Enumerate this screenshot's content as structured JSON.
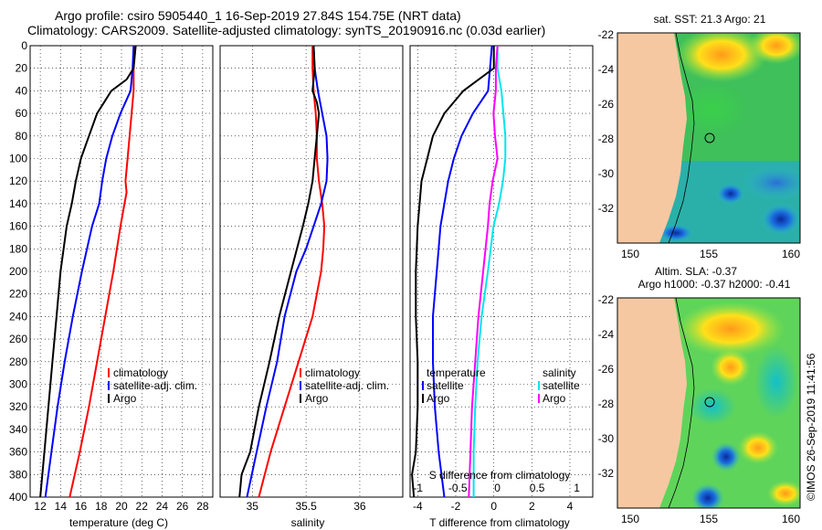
{
  "header": {
    "line1": "Argo profile: csiro 5905440_1 16-Sep-2019 27.84S 154.75E (NRT data)",
    "line2": "Climatology: CARS2009. Satellite-adjusted climatology: synTS_20190916.nc (0.03d earlier)"
  },
  "chart_data": [
    {
      "type": "line",
      "panel": "temperature",
      "xlabel": "temperature (deg C)",
      "ylabel": "",
      "xlim": [
        11,
        29
      ],
      "ylim": [
        400,
        0
      ],
      "xticks": [
        12,
        14,
        16,
        18,
        20,
        22,
        24,
        26,
        28
      ],
      "yticks": [
        0,
        20,
        40,
        60,
        80,
        100,
        120,
        140,
        160,
        180,
        200,
        220,
        240,
        260,
        280,
        300,
        320,
        340,
        360,
        380,
        400
      ],
      "legend": [
        "climatology",
        "satellite-adj. clim.",
        "Argo"
      ],
      "series": [
        {
          "name": "climatology",
          "color": "#ff0000",
          "depth": [
            0,
            20,
            40,
            60,
            80,
            100,
            120,
            130,
            140,
            160,
            200,
            240,
            280,
            320,
            360,
            400
          ],
          "values": [
            21.3,
            21.2,
            21.2,
            21.0,
            20.8,
            20.6,
            20.4,
            20.5,
            20.3,
            19.9,
            19.2,
            18.4,
            17.6,
            16.8,
            15.9,
            14.9
          ]
        },
        {
          "name": "satellite-adj. clim.",
          "color": "#0000ff",
          "depth": [
            0,
            20,
            40,
            50,
            60,
            80,
            100,
            120,
            140,
            160,
            200,
            240,
            280,
            320,
            360,
            400
          ],
          "values": [
            21.2,
            21.1,
            20.9,
            20.4,
            19.9,
            19.1,
            18.5,
            18.1,
            17.8,
            17.1,
            16.1,
            15.2,
            14.4,
            13.7,
            13.1,
            12.5
          ]
        },
        {
          "name": "Argo",
          "color": "#000000",
          "depth": [
            0,
            20,
            30,
            40,
            50,
            60,
            80,
            100,
            120,
            140,
            160,
            200,
            240,
            280,
            320,
            360,
            400
          ],
          "values": [
            21.4,
            21.2,
            20.5,
            19.0,
            18.3,
            17.6,
            16.8,
            16.0,
            15.5,
            15.1,
            14.6,
            14.0,
            13.6,
            13.2,
            12.8,
            12.4,
            12.0
          ]
        }
      ]
    },
    {
      "type": "line",
      "panel": "salinity",
      "xlabel": "salinity",
      "ylabel": "",
      "xlim": [
        34.7,
        36.4
      ],
      "ylim": [
        400,
        0
      ],
      "xticks": [
        35,
        35.5,
        36
      ],
      "xtick_labels": [
        "35",
        "35.5",
        "36"
      ],
      "legend": [
        "climatology",
        "satellite-adj. clim.",
        "Argo"
      ],
      "series": [
        {
          "name": "climatology",
          "color": "#ff0000",
          "depth": [
            0,
            20,
            40,
            60,
            80,
            100,
            120,
            140,
            160,
            180,
            200,
            240,
            280,
            320,
            360,
            400
          ],
          "values": [
            35.56,
            35.56,
            35.57,
            35.59,
            35.6,
            35.6,
            35.62,
            35.65,
            35.67,
            35.66,
            35.64,
            35.56,
            35.43,
            35.3,
            35.17,
            35.06
          ]
        },
        {
          "name": "satellite-adj. clim.",
          "color": "#0000ff",
          "depth": [
            0,
            20,
            40,
            60,
            80,
            100,
            120,
            140,
            160,
            180,
            200,
            240,
            280,
            320,
            360,
            400
          ],
          "values": [
            35.57,
            35.58,
            35.61,
            35.65,
            35.69,
            35.7,
            35.69,
            35.64,
            35.57,
            35.5,
            35.41,
            35.3,
            35.23,
            35.13,
            35.04,
            34.95
          ]
        },
        {
          "name": "Argo",
          "color": "#000000",
          "depth": [
            0,
            20,
            40,
            50,
            60,
            80,
            100,
            120,
            140,
            160,
            200,
            240,
            280,
            320,
            360,
            380,
            400
          ],
          "values": [
            35.57,
            35.58,
            35.56,
            35.6,
            35.62,
            35.6,
            35.58,
            35.56,
            35.52,
            35.47,
            35.36,
            35.25,
            35.16,
            35.06,
            34.98,
            34.9,
            34.88
          ]
        }
      ]
    },
    {
      "type": "line",
      "panel": "difference",
      "xlabel": "T difference from climatology",
      "xlabel_top": "S difference from climatology",
      "xlim": [
        -4.4,
        5.2
      ],
      "ylim": [
        400,
        0
      ],
      "xticks_bottom": [
        -4,
        -2,
        0,
        2,
        4
      ],
      "xticks_top": [
        -1,
        -0.5,
        0,
        0.5,
        1
      ],
      "xtick_labels_top": [
        "-1",
        "-0.5",
        "0",
        "0.5",
        "1"
      ],
      "legend_temperature": {
        "title": "temperature",
        "items": [
          "satellite",
          "Argo"
        ]
      },
      "legend_salinity": {
        "title": "salinity",
        "items": [
          "satellite",
          "Argo"
        ]
      },
      "series": [
        {
          "name": "T satellite",
          "color": "#0000ff",
          "depth": [
            0,
            20,
            40,
            60,
            80,
            100,
            120,
            140,
            160,
            200,
            240,
            280,
            320,
            360,
            400
          ],
          "values": [
            -0.1,
            -0.2,
            -0.3,
            -1.1,
            -1.7,
            -2.1,
            -2.4,
            -2.6,
            -2.8,
            -3.0,
            -3.2,
            -3.2,
            -3.1,
            -2.9,
            -2.6
          ]
        },
        {
          "name": "T Argo",
          "color": "#000000",
          "depth": [
            0,
            20,
            40,
            60,
            80,
            100,
            120,
            140,
            160,
            200,
            240,
            280,
            320,
            360,
            380,
            400
          ],
          "values": [
            0.0,
            0.0,
            -1.6,
            -2.6,
            -3.2,
            -3.5,
            -3.8,
            -3.9,
            -4.0,
            -4.1,
            -4.1,
            -4.0,
            -4.0,
            -4.1,
            -4.3,
            -4.2
          ]
        },
        {
          "name": "S satellite",
          "color": "#00e5ee",
          "depth": [
            0,
            20,
            40,
            80,
            100,
            120,
            140,
            160,
            200,
            240,
            280,
            320,
            360,
            400
          ],
          "values": [
            0.0,
            0.0,
            0.05,
            0.1,
            0.1,
            0.07,
            0.02,
            -0.05,
            -0.12,
            -0.2,
            -0.25,
            -0.28,
            -0.3,
            -0.3
          ]
        },
        {
          "name": "S Argo",
          "color": "#ff00ff",
          "depth": [
            0,
            20,
            40,
            60,
            80,
            100,
            120,
            140,
            160,
            200,
            240,
            280,
            320,
            360,
            400
          ],
          "values": [
            0.0,
            -0.02,
            -0.02,
            -0.05,
            -0.03,
            0.0,
            -0.06,
            -0.1,
            -0.12,
            -0.18,
            -0.24,
            -0.28,
            -0.32,
            -0.34,
            -0.36
          ]
        }
      ]
    }
  ],
  "maps": {
    "sst": {
      "title": "sat. SST: 21.3 Argo: 21",
      "lat_ticks": [
        "-22",
        "-24",
        "-26",
        "-28",
        "-30",
        "-32"
      ],
      "lon_ticks": [
        "150",
        "155",
        "160"
      ]
    },
    "sla": {
      "title_line1": "Altim. SLA: -0.37",
      "title_line2": "Argo h1000: -0.37 h2000: -0.41",
      "lat_ticks": [
        "-22",
        "-24",
        "-26",
        "-28",
        "-30",
        "-32"
      ],
      "lon_ticks": [
        "150",
        "155",
        "160"
      ]
    }
  },
  "footer": {
    "credit": "©IMOS 26-Sep-2019 11:41:56"
  }
}
